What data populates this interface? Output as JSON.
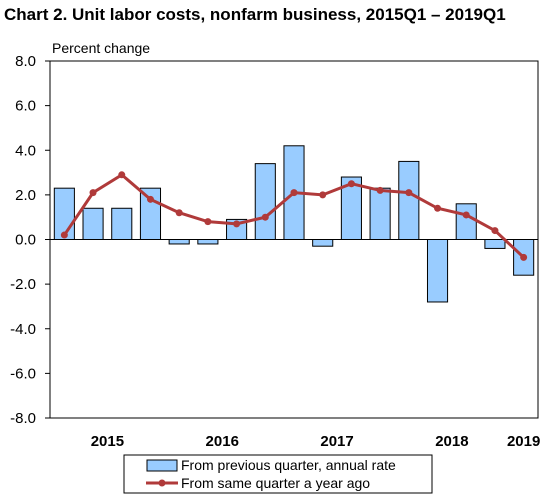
{
  "chart_data": {
    "type": "bar",
    "title": "Chart  2. Unit labor costs, nonfarm business, 2015Q1 – 2019Q1",
    "ylabel": "Percent change",
    "xlabel": "",
    "ylim": [
      -8.0,
      8.0
    ],
    "yticks": [
      "8.0",
      "6.0",
      "4.0",
      "2.0",
      "0.0",
      "-2.0",
      "-4.0",
      "-6.0",
      "-8.0"
    ],
    "ytick_values": [
      8,
      6,
      4,
      2,
      0,
      -2,
      -4,
      -6,
      -8
    ],
    "year_labels": [
      {
        "label": "2015",
        "quarter_index": 1.5
      },
      {
        "label": "2016",
        "quarter_index": 5.5
      },
      {
        "label": "2017",
        "quarter_index": 9.5
      },
      {
        "label": "2018",
        "quarter_index": 13.5
      },
      {
        "label": "2019",
        "quarter_index": 16
      }
    ],
    "categories": [
      "2015Q1",
      "2015Q2",
      "2015Q3",
      "2015Q4",
      "2016Q1",
      "2016Q2",
      "2016Q3",
      "2016Q4",
      "2017Q1",
      "2017Q2",
      "2017Q3",
      "2017Q4",
      "2018Q1",
      "2018Q2",
      "2018Q3",
      "2018Q4",
      "2019Q1"
    ],
    "series": [
      {
        "name": "From previous quarter, annual rate",
        "kind": "bar",
        "color": "#99ccff",
        "values": [
          2.3,
          1.4,
          1.4,
          2.3,
          -0.2,
          -0.2,
          0.9,
          3.4,
          4.2,
          -0.3,
          2.8,
          2.3,
          3.5,
          -2.8,
          1.6,
          -0.4,
          -1.6
        ]
      },
      {
        "name": "From same quarter a year ago",
        "kind": "line",
        "color": "#b03a3a",
        "values": [
          0.2,
          2.1,
          2.9,
          1.8,
          1.2,
          0.8,
          0.7,
          1.0,
          2.1,
          2.0,
          2.5,
          2.2,
          2.1,
          1.4,
          1.1,
          0.4,
          -0.8
        ]
      }
    ],
    "grid": false,
    "legend_position": "bottom-center"
  }
}
